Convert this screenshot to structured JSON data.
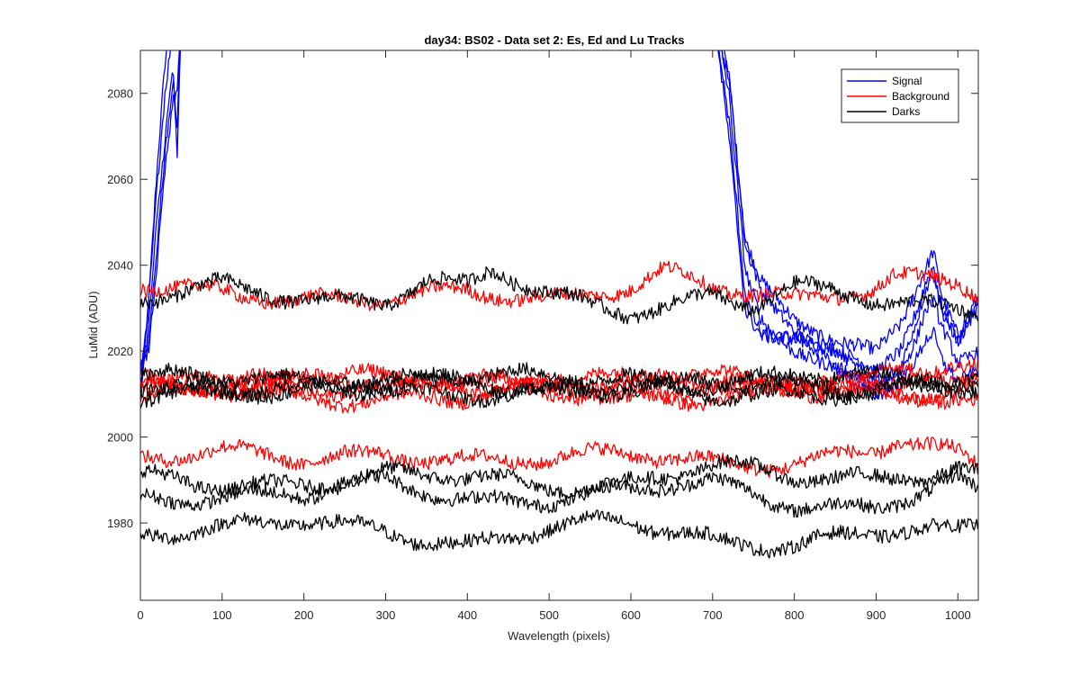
{
  "chart_data": {
    "type": "line",
    "title": "day34: BS02 - Data set 2: Es, Ed and Lu Tracks",
    "xlabel": "Wavelength (pixels)",
    "ylabel": "LuMid (ADU)",
    "xlim": [
      0,
      1025
    ],
    "ylim": [
      1962,
      2090
    ],
    "xticks": [
      0,
      100,
      200,
      300,
      400,
      500,
      600,
      700,
      800,
      900,
      1000
    ],
    "yticks": [
      1980,
      2000,
      2020,
      2040,
      2060,
      2080
    ],
    "grid": false,
    "legend_position": "top-right",
    "colors": {
      "Signal": "#0000ff",
      "Background": "#ff0000",
      "Darks": "#000000"
    },
    "legend": [
      "Signal",
      "Background",
      "Darks"
    ],
    "series": [
      {
        "name": "Signal",
        "group": "Signal",
        "x": [
          0,
          10,
          20,
          30,
          40,
          45,
          50,
          700,
          720,
          740,
          760,
          800,
          850,
          900,
          930,
          950,
          960,
          970,
          980,
          1000,
          1025
        ],
        "y": [
          2008,
          2030,
          2060,
          2085,
          2100,
          2100,
          2100,
          2100,
          2085,
          2045,
          2035,
          2027,
          2022,
          2018,
          2025,
          2035,
          2040,
          2045,
          2035,
          2025,
          2033
        ]
      },
      {
        "name": "Signal",
        "group": "Signal",
        "x": [
          0,
          10,
          20,
          30,
          40,
          45,
          50,
          700,
          720,
          740,
          760,
          800,
          850,
          900,
          930,
          950,
          960,
          970,
          980,
          1000,
          1025
        ],
        "y": [
          2010,
          2028,
          2055,
          2078,
          2094,
          2100,
          2100,
          2100,
          2082,
          2042,
          2032,
          2025,
          2020,
          2015,
          2022,
          2032,
          2038,
          2042,
          2032,
          2022,
          2030
        ]
      },
      {
        "name": "Signal",
        "group": "Signal",
        "x": [
          0,
          10,
          20,
          30,
          40,
          45,
          50,
          700,
          720,
          740,
          760,
          800,
          850,
          900,
          930,
          950,
          960,
          970,
          980,
          1000,
          1025
        ],
        "y": [
          2012,
          2025,
          2050,
          2070,
          2088,
          2066,
          2100,
          2100,
          2078,
          2038,
          2028,
          2022,
          2016,
          2012,
          2018,
          2028,
          2034,
          2038,
          2028,
          2020,
          2028
        ]
      },
      {
        "name": "Signal",
        "group": "Signal",
        "x": [
          0,
          10,
          20,
          30,
          40,
          45,
          50,
          700,
          720,
          740,
          760,
          800,
          850,
          900,
          930,
          950,
          960,
          970,
          980,
          1000,
          1025
        ],
        "y": [
          2014,
          2022,
          2045,
          2068,
          2084,
          2075,
          2100,
          2100,
          2074,
          2034,
          2026,
          2024,
          2018,
          2013,
          2015,
          2022,
          2028,
          2030,
          2024,
          2016,
          2020
        ]
      },
      {
        "name": "Signal",
        "group": "Signal",
        "x": [
          0,
          10,
          20,
          30,
          40,
          45,
          50,
          700,
          720,
          740,
          760,
          800,
          850,
          900,
          930,
          950,
          960,
          970,
          980,
          1000,
          1025
        ],
        "y": [
          2016,
          2020,
          2040,
          2062,
          2078,
          2080,
          2100,
          2100,
          2070,
          2030,
          2024,
          2021,
          2015,
          2011,
          2013,
          2018,
          2022,
          2024,
          2018,
          2014,
          2018
        ]
      },
      {
        "name": "Background",
        "group": "Background",
        "x": [
          0,
          100,
          200,
          300,
          400,
          500,
          600,
          640,
          700,
          800,
          900,
          920,
          970,
          1000,
          1025
        ],
        "y": [
          2035,
          2035,
          2032,
          2031,
          2034,
          2033,
          2035,
          2038,
          2034,
          2032,
          2036,
          2038,
          2037,
          2036,
          2033
        ]
      },
      {
        "name": "Background",
        "group": "Background",
        "x": [
          0,
          100,
          200,
          300,
          400,
          500,
          600,
          700,
          800,
          900,
          1000,
          1025
        ],
        "y": [
          2013,
          2014,
          2012,
          2013,
          2013,
          2012,
          2012,
          2013,
          2013,
          2014,
          2013,
          2014
        ]
      },
      {
        "name": "Background",
        "group": "Background",
        "x": [
          0,
          100,
          200,
          300,
          400,
          500,
          600,
          700,
          800,
          900,
          1000,
          1025
        ],
        "y": [
          2009,
          2010,
          2009,
          2010,
          2009,
          2011,
          2009,
          2010,
          2010,
          2009,
          2010,
          2009
        ]
      },
      {
        "name": "Background",
        "group": "Background",
        "x": [
          0,
          100,
          200,
          300,
          400,
          500,
          600,
          700,
          800,
          900,
          1000,
          1025
        ],
        "y": [
          2011,
          2012,
          2012,
          2011,
          2012,
          2011,
          2011,
          2011,
          2012,
          2011,
          2011,
          2012
        ]
      },
      {
        "name": "Background",
        "group": "Background",
        "x": [
          0,
          100,
          200,
          300,
          400,
          500,
          600,
          700,
          800,
          900,
          1000,
          1025
        ],
        "y": [
          2014,
          2013,
          2014,
          2013,
          2014,
          2014,
          2013,
          2014,
          2013,
          2014,
          2014,
          2015
        ]
      },
      {
        "name": "Background",
        "group": "Background",
        "x": [
          0,
          100,
          200,
          300,
          400,
          500,
          600,
          700,
          800,
          900,
          920,
          1000,
          1025
        ],
        "y": [
          1996,
          1996,
          1994,
          1997,
          1995,
          1994,
          1996,
          1995,
          1994,
          1996,
          1998,
          1996,
          1994
        ]
      },
      {
        "name": "Darks",
        "group": "Darks",
        "x": [
          0,
          100,
          200,
          300,
          350,
          400,
          430,
          500,
          600,
          700,
          750,
          800,
          900,
          1000,
          1025
        ],
        "y": [
          2031,
          2035,
          2033,
          2032,
          2036,
          2034,
          2038,
          2033,
          2030,
          2033,
          2030,
          2034,
          2032,
          2031,
          2030
        ]
      },
      {
        "name": "Darks",
        "group": "Darks",
        "x": [
          0,
          100,
          200,
          300,
          400,
          500,
          600,
          700,
          800,
          900,
          1000,
          1025
        ],
        "y": [
          2012,
          2012,
          2011,
          2012,
          2013,
          2012,
          2011,
          2012,
          2012,
          2012,
          2013,
          2012
        ]
      },
      {
        "name": "Darks",
        "group": "Darks",
        "x": [
          0,
          100,
          200,
          300,
          400,
          500,
          600,
          700,
          800,
          900,
          1000,
          1025
        ],
        "y": [
          2010,
          2011,
          2010,
          2011,
          2011,
          2010,
          2011,
          2010,
          2011,
          2010,
          2011,
          2010
        ]
      },
      {
        "name": "Darks",
        "group": "Darks",
        "x": [
          0,
          100,
          200,
          300,
          400,
          500,
          600,
          700,
          800,
          900,
          1000,
          1025
        ],
        "y": [
          2014,
          2013,
          2013,
          2014,
          2014,
          2013,
          2014,
          2013,
          2014,
          2013,
          2014,
          2014
        ]
      },
      {
        "name": "Darks",
        "group": "Darks",
        "x": [
          0,
          100,
          200,
          300,
          400,
          500,
          600,
          700,
          800,
          900,
          1000,
          1025
        ],
        "y": [
          1990,
          1989,
          1990,
          1991,
          1990,
          1989,
          1990,
          1993,
          1990,
          1991,
          1993,
          1991
        ]
      },
      {
        "name": "Darks",
        "group": "Darks",
        "x": [
          0,
          100,
          200,
          300,
          400,
          500,
          600,
          700,
          800,
          900,
          1000,
          1025
        ],
        "y": [
          1986,
          1987,
          1986,
          1989,
          1986,
          1986,
          1987,
          1989,
          1985,
          1984,
          1989,
          1986
        ]
      },
      {
        "name": "Darks",
        "group": "Darks",
        "x": [
          0,
          100,
          200,
          300,
          400,
          500,
          600,
          700,
          800,
          900,
          1000,
          1025
        ],
        "y": [
          1978,
          1978,
          1980,
          1979,
          1975,
          1978,
          1980,
          1977,
          1975,
          1977,
          1978,
          1980
        ]
      }
    ]
  }
}
